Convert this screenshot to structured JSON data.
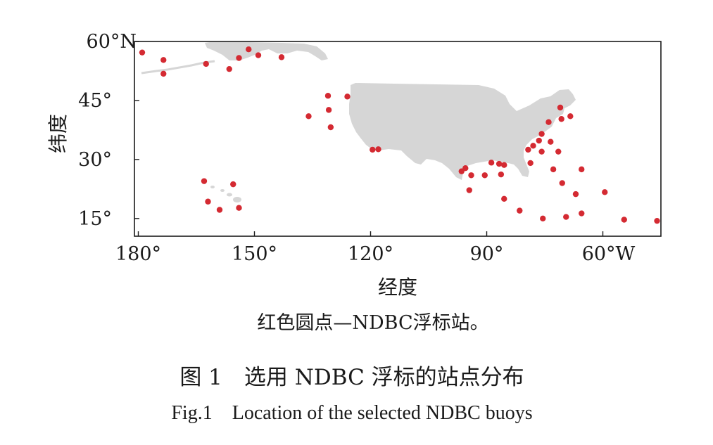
{
  "chart_data": {
    "type": "scatter",
    "map": "North Pacific / North Atlantic buoy locations",
    "xlim": [
      -181,
      -45
    ],
    "ylim": [
      10.5,
      60
    ],
    "x_ticks": [
      {
        "value": -180,
        "label": "180°"
      },
      {
        "value": -150,
        "label": "150°"
      },
      {
        "value": -120,
        "label": "120°"
      },
      {
        "value": -90,
        "label": "90°"
      },
      {
        "value": -60,
        "label": "60°W"
      }
    ],
    "y_ticks": [
      {
        "value": 60,
        "label": "60°N"
      },
      {
        "value": 45,
        "label": "45°"
      },
      {
        "value": 30,
        "label": "30°"
      },
      {
        "value": 15,
        "label": "15°"
      }
    ],
    "xlabel": "经度",
    "ylabel": "纬度",
    "point_color": "#d42a32",
    "land_color": "#d6d6d6",
    "series": [
      {
        "name": "NDBC浮标站",
        "points": [
          {
            "lon": -179,
            "lat": 57.2
          },
          {
            "lon": -173.5,
            "lat": 55.3
          },
          {
            "lon": -173.5,
            "lat": 51.8
          },
          {
            "lon": -162.5,
            "lat": 54.3
          },
          {
            "lon": -156.5,
            "lat": 53.0
          },
          {
            "lon": -154,
            "lat": 55.8
          },
          {
            "lon": -151.5,
            "lat": 58.0
          },
          {
            "lon": -149,
            "lat": 56.5
          },
          {
            "lon": -143,
            "lat": 56.0
          },
          {
            "lon": -136,
            "lat": 41.0
          },
          {
            "lon": -131,
            "lat": 46.2
          },
          {
            "lon": -130.8,
            "lat": 42.6
          },
          {
            "lon": -130.3,
            "lat": 38.2
          },
          {
            "lon": -126,
            "lat": 46.0
          },
          {
            "lon": -119.5,
            "lat": 32.5
          },
          {
            "lon": -118,
            "lat": 32.6
          },
          {
            "lon": -163,
            "lat": 24.5
          },
          {
            "lon": -162,
            "lat": 19.3
          },
          {
            "lon": -155.5,
            "lat": 23.7
          },
          {
            "lon": -159,
            "lat": 17.2
          },
          {
            "lon": -154,
            "lat": 17.7
          },
          {
            "lon": -96.5,
            "lat": 27.0
          },
          {
            "lon": -95.5,
            "lat": 27.8
          },
          {
            "lon": -94,
            "lat": 26.0
          },
          {
            "lon": -94.5,
            "lat": 22.2
          },
          {
            "lon": -90.5,
            "lat": 26.0
          },
          {
            "lon": -88.8,
            "lat": 29.2
          },
          {
            "lon": -86.8,
            "lat": 28.9
          },
          {
            "lon": -85.5,
            "lat": 28.6
          },
          {
            "lon": -86.3,
            "lat": 26.2
          },
          {
            "lon": -85.5,
            "lat": 20.0
          },
          {
            "lon": -81.5,
            "lat": 17.0
          },
          {
            "lon": -79.3,
            "lat": 32.5
          },
          {
            "lon": -78.7,
            "lat": 29.1
          },
          {
            "lon": -78,
            "lat": 33.5
          },
          {
            "lon": -76.5,
            "lat": 34.8
          },
          {
            "lon": -75.8,
            "lat": 36.5
          },
          {
            "lon": -75.8,
            "lat": 32.0
          },
          {
            "lon": -74,
            "lat": 39.5
          },
          {
            "lon": -73.5,
            "lat": 34.5
          },
          {
            "lon": -72.8,
            "lat": 27.5
          },
          {
            "lon": -71,
            "lat": 43.2
          },
          {
            "lon": -70.7,
            "lat": 40.3
          },
          {
            "lon": -68.4,
            "lat": 41.0
          },
          {
            "lon": -71.5,
            "lat": 32.0
          },
          {
            "lon": -70.5,
            "lat": 24.0
          },
          {
            "lon": -67,
            "lat": 21.2
          },
          {
            "lon": -65.5,
            "lat": 27.5
          },
          {
            "lon": -65.5,
            "lat": 16.3
          },
          {
            "lon": -59.5,
            "lat": 21.7
          },
          {
            "lon": -75.5,
            "lat": 15.0
          },
          {
            "lon": -69.5,
            "lat": 15.4
          },
          {
            "lon": -54.5,
            "lat": 14.7
          },
          {
            "lon": -46,
            "lat": 14.4
          }
        ]
      }
    ]
  },
  "legend_note": "红色圆点—NDBC浮标站。",
  "caption": {
    "cn": "图 1　选用 NDBC 浮标的站点分布",
    "en": "Fig.1　Location of the selected NDBC buoys"
  }
}
